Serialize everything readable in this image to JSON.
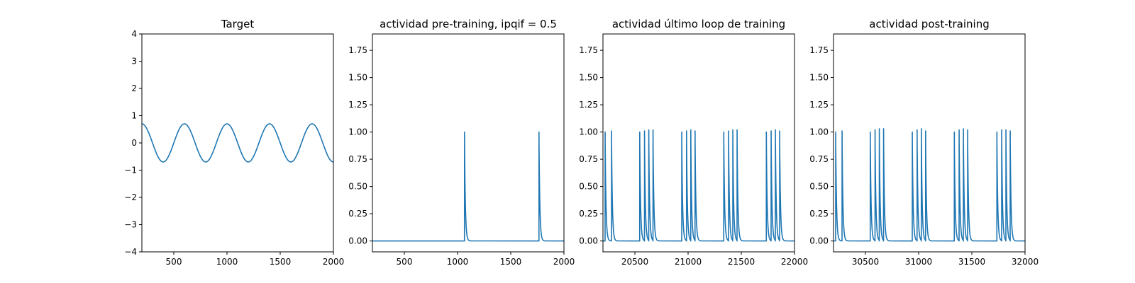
{
  "chart_data": [
    {
      "type": "line",
      "title": "Target",
      "xlim": [
        200,
        2000
      ],
      "ylim": [
        -4,
        4
      ],
      "xticks": [
        500,
        1000,
        1500,
        2000
      ],
      "yticks": [
        -4,
        -3,
        -2,
        -1,
        0,
        1,
        2,
        3,
        4
      ],
      "series": [
        {
          "kind": "sine",
          "amplitude": 0.7,
          "period": 400,
          "peak_at": 200,
          "x_start": 200,
          "x_end": 2000
        }
      ]
    },
    {
      "type": "line",
      "title": "actividad pre-training, ipqif = 0.5",
      "xlim": [
        200,
        2000
      ],
      "ylim": [
        -0.1,
        1.9
      ],
      "xticks": [
        500,
        1000,
        1500,
        2000
      ],
      "yticks": [
        0.0,
        0.25,
        0.5,
        0.75,
        1.0,
        1.25,
        1.5,
        1.75
      ],
      "series": [
        {
          "kind": "spikes",
          "x_start": 200,
          "x_end": 2000,
          "decay": 8,
          "spikes": [
            [
              1065,
              1.0
            ],
            [
              1765,
              1.0
            ]
          ]
        }
      ]
    },
    {
      "type": "line",
      "title": "actividad último loop de training",
      "xlim": [
        20200,
        22000
      ],
      "ylim": [
        -0.1,
        1.9
      ],
      "xticks": [
        20500,
        21000,
        21500,
        22000
      ],
      "yticks": [
        0.0,
        0.25,
        0.5,
        0.75,
        1.0,
        1.25,
        1.5,
        1.75
      ],
      "series": [
        {
          "kind": "spikes",
          "x_start": 20200,
          "x_end": 22000,
          "decay": 8,
          "spikes": [
            [
              20220,
              1.0
            ],
            [
              20280,
              1.01
            ],
            [
              20545,
              1.0
            ],
            [
              20590,
              1.01
            ],
            [
              20630,
              1.02
            ],
            [
              20670,
              1.02
            ],
            [
              20940,
              1.0
            ],
            [
              20985,
              1.01
            ],
            [
              21025,
              1.02
            ],
            [
              21065,
              1.01
            ],
            [
              21335,
              1.0
            ],
            [
              21380,
              1.01
            ],
            [
              21420,
              1.02
            ],
            [
              21460,
              1.02
            ],
            [
              21735,
              1.0
            ],
            [
              21780,
              1.01
            ],
            [
              21820,
              1.02
            ],
            [
              21860,
              1.01
            ]
          ]
        }
      ]
    },
    {
      "type": "line",
      "title": "actividad post-training",
      "xlim": [
        30200,
        32000
      ],
      "ylim": [
        -0.1,
        1.9
      ],
      "xticks": [
        30500,
        31000,
        31500,
        32000
      ],
      "yticks": [
        0.0,
        0.25,
        0.5,
        0.75,
        1.0,
        1.25,
        1.5,
        1.75
      ],
      "series": [
        {
          "kind": "spikes",
          "x_start": 30200,
          "x_end": 32000,
          "decay": 8,
          "spikes": [
            [
              30220,
              1.0
            ],
            [
              30280,
              1.01
            ],
            [
              30545,
              1.0
            ],
            [
              30590,
              1.02
            ],
            [
              30630,
              1.03
            ],
            [
              30670,
              1.03
            ],
            [
              30940,
              1.0
            ],
            [
              30985,
              1.02
            ],
            [
              31025,
              1.03
            ],
            [
              31065,
              1.01
            ],
            [
              31335,
              1.0
            ],
            [
              31380,
              1.02
            ],
            [
              31420,
              1.03
            ],
            [
              31460,
              1.02
            ],
            [
              31735,
              1.0
            ],
            [
              31780,
              1.02
            ],
            [
              31820,
              1.02
            ],
            [
              31860,
              1.01
            ]
          ]
        }
      ]
    }
  ],
  "colors": {
    "series": "#1f77b4",
    "axes": "#000000"
  }
}
